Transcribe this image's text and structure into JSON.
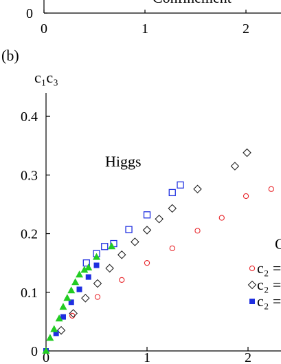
{
  "chart_data": [
    {
      "type": "scatter",
      "annotations": [
        "Confinement"
      ],
      "xlim": [
        0,
        2.3
      ],
      "xticks": [
        0,
        1,
        2
      ],
      "yticks": [
        0
      ]
    },
    {
      "type": "scatter",
      "panel_label": "(b)",
      "y_label": "c₁c₃",
      "annotations": [
        "Higgs",
        "C"
      ],
      "xlim": [
        0,
        2.3
      ],
      "ylim": [
        0,
        0.44
      ],
      "xticks": [
        0,
        1,
        2
      ],
      "yticks": [
        0,
        0.1,
        0.2,
        0.3,
        0.4
      ],
      "series": [
        {
          "name": "c₂ =",
          "marker": "open-circle",
          "color": "#e8262b",
          "x": [
            0.26,
            0.51,
            0.75,
            1.0,
            1.25,
            1.5,
            1.74,
            1.98,
            2.23
          ],
          "values": [
            0.06,
            0.092,
            0.121,
            0.15,
            0.175,
            0.205,
            0.227,
            0.264,
            0.276
          ]
        },
        {
          "name": "c₂ =",
          "marker": "open-diamond",
          "color": "#222222",
          "x": [
            0.15,
            0.27,
            0.39,
            0.51,
            0.63,
            0.75,
            0.88,
            1.0,
            1.12,
            1.25,
            1.5,
            1.87,
            1.99
          ],
          "values": [
            0.035,
            0.064,
            0.09,
            0.115,
            0.141,
            0.164,
            0.186,
            0.206,
            0.225,
            0.243,
            0.276,
            0.315,
            0.338
          ]
        },
        {
          "name": "c₂ =",
          "marker": "filled-square",
          "color": "#1f2fe0",
          "x": [
            0.0,
            0.1,
            0.17,
            0.25,
            0.33,
            0.42,
            0.5
          ],
          "values": [
            0,
            0.03,
            0.058,
            0.083,
            0.105,
            0.126,
            0.146
          ]
        },
        {
          "marker": "open-square",
          "color": "#1f2fe0",
          "x": [
            0.4,
            0.5,
            0.58,
            0.67,
            0.82,
            1.0,
            1.25,
            1.33
          ],
          "values": [
            0.15,
            0.166,
            0.178,
            0.183,
            0.207,
            0.232,
            0.27,
            0.283
          ]
        },
        {
          "marker": "filled-triangle",
          "color": "#22cc22",
          "x": [
            0,
            0.04,
            0.08,
            0.13,
            0.17,
            0.21,
            0.25,
            0.29,
            0.33,
            0.38,
            0.42,
            0.5,
            0.65
          ],
          "values": [
            0,
            0.022,
            0.037,
            0.055,
            0.075,
            0.09,
            0.103,
            0.117,
            0.13,
            0.138,
            0.142,
            0.16,
            0.178
          ]
        }
      ]
    }
  ]
}
